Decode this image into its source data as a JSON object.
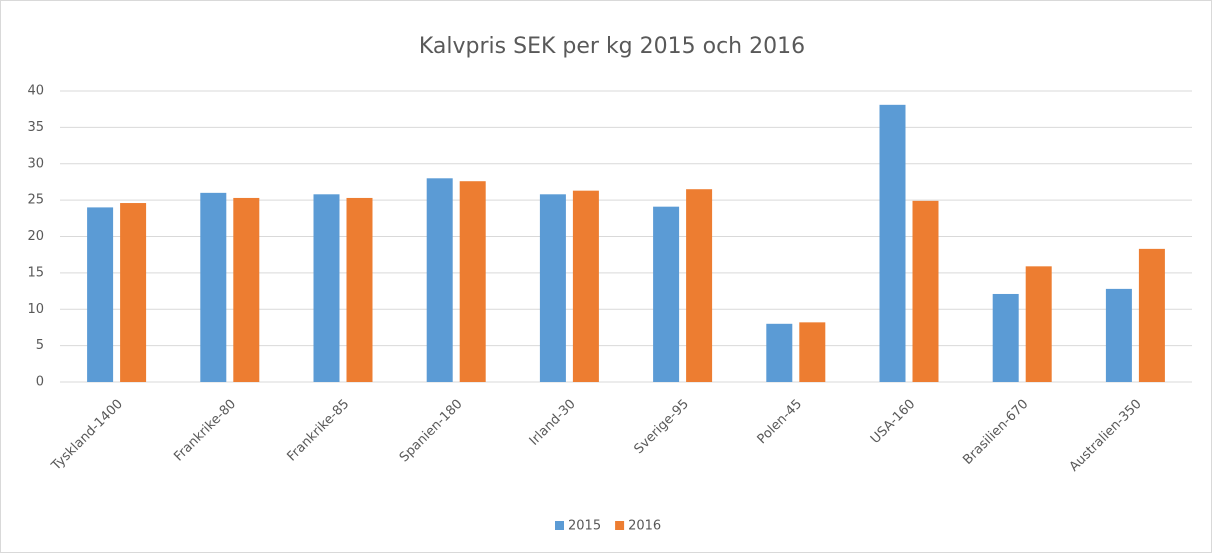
{
  "chart_data": {
    "type": "bar",
    "title": "Kalvpris SEK per kg 2015 och 2016",
    "categories": [
      "Tyskland-1400",
      "Frankrike-80",
      "Frankrike-85",
      "Spanien-180",
      "Irland-30",
      "Sverige-95",
      "Polen-45",
      "USA-160",
      "Brasilien-670",
      "Australien-350"
    ],
    "series": [
      {
        "name": "2015",
        "color": "#5b9bd5",
        "values": [
          24,
          26,
          25.8,
          28,
          25.8,
          24.1,
          8,
          38.1,
          12.1,
          12.8
        ]
      },
      {
        "name": "2016",
        "color": "#ed7d31",
        "values": [
          24.6,
          25.3,
          25.3,
          27.6,
          26.3,
          26.5,
          8.2,
          24.9,
          15.9,
          18.3
        ]
      }
    ],
    "ylim": [
      0,
      40
    ],
    "yticks": [
      0,
      5,
      10,
      15,
      20,
      25,
      30,
      35,
      40
    ],
    "grid": true,
    "legend": "bottom"
  }
}
